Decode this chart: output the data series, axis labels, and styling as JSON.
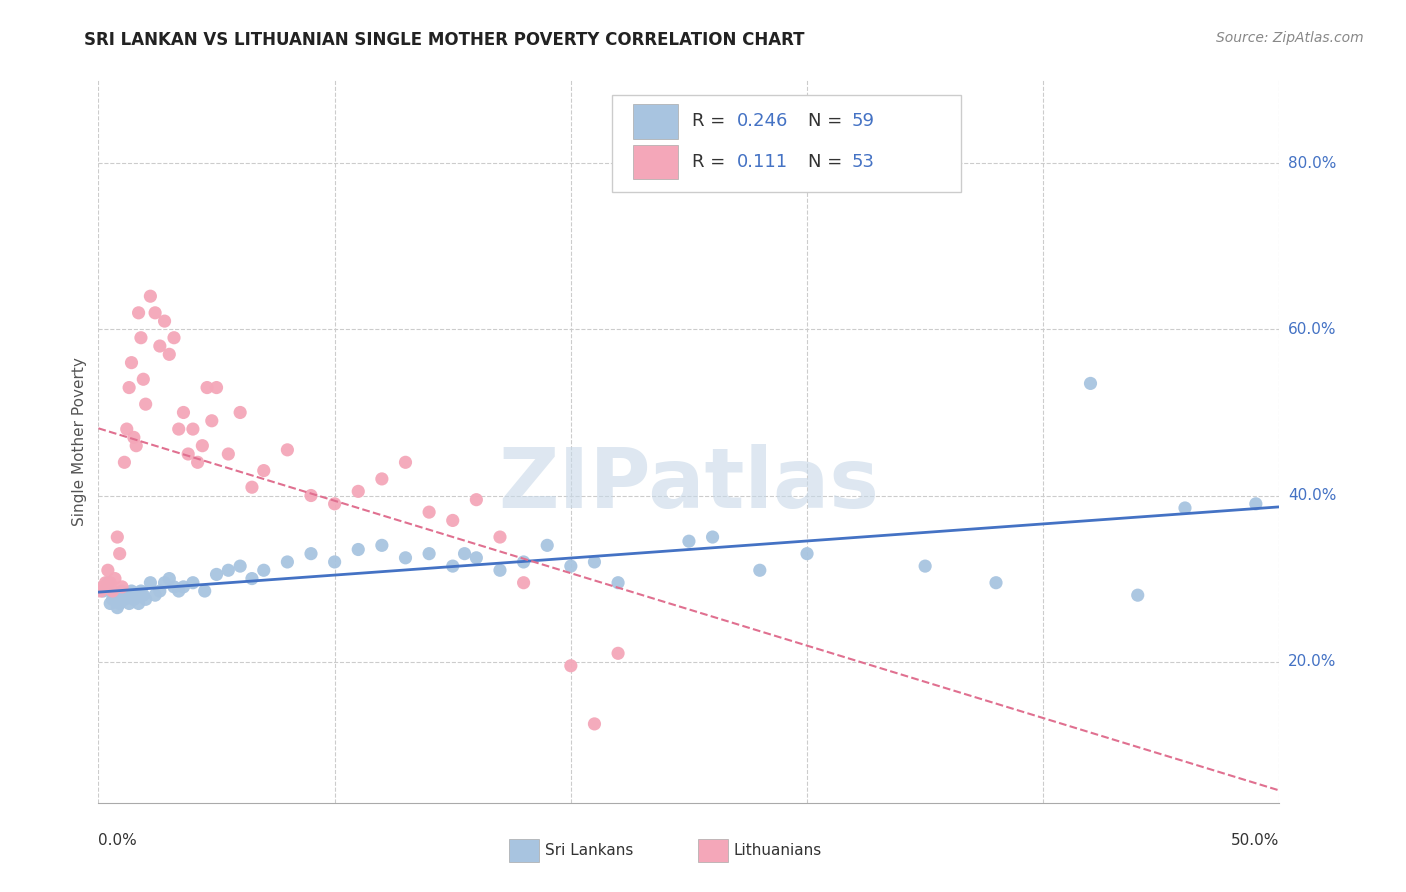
{
  "title": "SRI LANKAN VS LITHUANIAN SINGLE MOTHER POVERTY CORRELATION CHART",
  "source": "Source: ZipAtlas.com",
  "ylabel": "Single Mother Poverty",
  "ytick_values": [
    0.2,
    0.4,
    0.6,
    0.8
  ],
  "ytick_labels": [
    "20.0%",
    "40.0%",
    "60.0%",
    "80.0%"
  ],
  "xlim": [
    0.0,
    0.5
  ],
  "ylim": [
    0.03,
    0.9
  ],
  "blue_dot_color": "#a8c4e0",
  "blue_line_color": "#4472c4",
  "pink_dot_color": "#f4a7b9",
  "pink_line_color": "#e07090",
  "R_sri": 0.246,
  "N_sri": 59,
  "R_lith": 0.111,
  "N_lith": 53,
  "legend_r_color": "#4472c4",
  "legend_label1": "Sri Lankans",
  "legend_label2": "Lithuanians",
  "sri_x": [
    0.002,
    0.004,
    0.005,
    0.006,
    0.007,
    0.008,
    0.009,
    0.01,
    0.011,
    0.012,
    0.013,
    0.014,
    0.015,
    0.016,
    0.017,
    0.018,
    0.019,
    0.02,
    0.022,
    0.024,
    0.026,
    0.028,
    0.03,
    0.032,
    0.034,
    0.036,
    0.04,
    0.045,
    0.05,
    0.055,
    0.06,
    0.065,
    0.07,
    0.08,
    0.09,
    0.1,
    0.11,
    0.12,
    0.13,
    0.14,
    0.15,
    0.155,
    0.16,
    0.17,
    0.18,
    0.19,
    0.2,
    0.21,
    0.22,
    0.25,
    0.26,
    0.28,
    0.3,
    0.35,
    0.38,
    0.42,
    0.44,
    0.46,
    0.49
  ],
  "sri_y": [
    0.285,
    0.295,
    0.27,
    0.275,
    0.28,
    0.265,
    0.27,
    0.285,
    0.275,
    0.28,
    0.27,
    0.285,
    0.275,
    0.28,
    0.27,
    0.285,
    0.28,
    0.275,
    0.295,
    0.28,
    0.285,
    0.295,
    0.3,
    0.29,
    0.285,
    0.29,
    0.295,
    0.285,
    0.305,
    0.31,
    0.315,
    0.3,
    0.31,
    0.32,
    0.33,
    0.32,
    0.335,
    0.34,
    0.325,
    0.33,
    0.315,
    0.33,
    0.325,
    0.31,
    0.32,
    0.34,
    0.315,
    0.32,
    0.295,
    0.345,
    0.35,
    0.31,
    0.33,
    0.315,
    0.295,
    0.535,
    0.28,
    0.385,
    0.39
  ],
  "lith_x": [
    0.001,
    0.002,
    0.003,
    0.004,
    0.005,
    0.006,
    0.007,
    0.008,
    0.009,
    0.01,
    0.011,
    0.012,
    0.013,
    0.014,
    0.015,
    0.016,
    0.017,
    0.018,
    0.019,
    0.02,
    0.022,
    0.024,
    0.026,
    0.028,
    0.03,
    0.032,
    0.034,
    0.036,
    0.038,
    0.04,
    0.042,
    0.044,
    0.046,
    0.048,
    0.05,
    0.055,
    0.06,
    0.065,
    0.07,
    0.08,
    0.09,
    0.1,
    0.11,
    0.12,
    0.13,
    0.14,
    0.15,
    0.16,
    0.17,
    0.18,
    0.2,
    0.21,
    0.22
  ],
  "lith_y": [
    0.285,
    0.29,
    0.295,
    0.31,
    0.295,
    0.285,
    0.3,
    0.35,
    0.33,
    0.29,
    0.44,
    0.48,
    0.53,
    0.56,
    0.47,
    0.46,
    0.62,
    0.59,
    0.54,
    0.51,
    0.64,
    0.62,
    0.58,
    0.61,
    0.57,
    0.59,
    0.48,
    0.5,
    0.45,
    0.48,
    0.44,
    0.46,
    0.53,
    0.49,
    0.53,
    0.45,
    0.5,
    0.41,
    0.43,
    0.455,
    0.4,
    0.39,
    0.405,
    0.42,
    0.44,
    0.38,
    0.37,
    0.395,
    0.35,
    0.295,
    0.195,
    0.125,
    0.21
  ],
  "grid_x": [
    0.0,
    0.1,
    0.2,
    0.3,
    0.4,
    0.5
  ],
  "watermark_text": "ZIPatlas",
  "watermark_color": "#c8d8e8",
  "watermark_alpha": 0.6
}
